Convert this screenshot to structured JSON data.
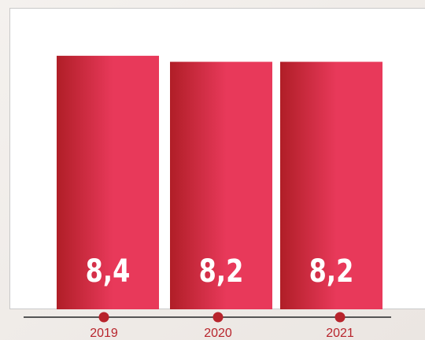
{
  "chart_data": {
    "type": "bar",
    "categories": [
      "2019",
      "2020",
      "2021"
    ],
    "values": [
      8.4,
      8.2,
      8.2
    ],
    "value_labels": [
      "8,4",
      "8,2",
      "8,2"
    ],
    "color": "#e8395a"
  }
}
